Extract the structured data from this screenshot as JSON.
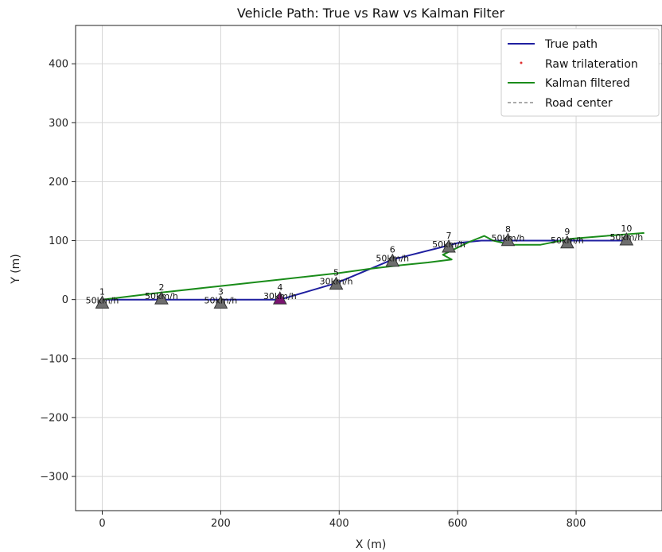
{
  "chart_data": {
    "type": "line",
    "title": "Vehicle Path: True vs Raw vs Kalman Filter",
    "xlabel": "X (m)",
    "ylabel": "Y (m)",
    "xlim": [
      -45,
      945
    ],
    "ylim": [
      -358,
      465
    ],
    "xticks": [
      0,
      200,
      400,
      600,
      800
    ],
    "yticks": [
      -300,
      -200,
      -100,
      0,
      100,
      200,
      300,
      400
    ],
    "xtick_labels": [
      "0",
      "200",
      "400",
      "600",
      "800"
    ],
    "ytick_labels": [
      "−300",
      "−200",
      "−100",
      "0",
      "100",
      "200",
      "300",
      "400"
    ],
    "grid": true,
    "legend_position": "top-right",
    "legend": [
      {
        "label": "True path",
        "style": "line",
        "color": "#1f1fa0"
      },
      {
        "label": "Raw trilateration",
        "style": "point",
        "color": "#e03030"
      },
      {
        "label": "Kalman filtered",
        "style": "line",
        "color": "#1a8c1a"
      },
      {
        "label": "Road center",
        "style": "dashed",
        "color": "#777777"
      }
    ],
    "series": [
      {
        "name": "True path",
        "color": "#1f1fa0",
        "x": [
          0,
          100,
          200,
          300,
          395,
          490,
          585,
          600,
          640,
          685,
          785,
          885
        ],
        "y": [
          0,
          0,
          0,
          0,
          28,
          68,
          92,
          96,
          100,
          100,
          100,
          100
        ]
      },
      {
        "name": "Kalman filtered",
        "color": "#1a8c1a",
        "x": [
          0,
          100,
          200,
          300,
          400,
          450,
          500,
          550,
          590,
          575,
          620,
          645,
          660,
          690,
          740,
          790,
          850,
          915
        ],
        "y": [
          0,
          12,
          23,
          34,
          45,
          52,
          58,
          63,
          68,
          76,
          98,
          108,
          100,
          93,
          93,
          103,
          108,
          113
        ]
      }
    ],
    "towers": [
      {
        "id": "1",
        "x": 0,
        "y": -5,
        "speed": "50km/h",
        "color": "#6e6e6e"
      },
      {
        "id": "2",
        "x": 100,
        "y": 2,
        "speed": "50km/h",
        "color": "#6e6e6e"
      },
      {
        "id": "3",
        "x": 200,
        "y": -5,
        "speed": "50km/h",
        "color": "#6e6e6e"
      },
      {
        "id": "4",
        "x": 300,
        "y": 2,
        "speed": "30km/h",
        "color": "#7a1470"
      },
      {
        "id": "5",
        "x": 395,
        "y": 27,
        "speed": "30km/h",
        "color": "#6e6e6e"
      },
      {
        "id": "6",
        "x": 490,
        "y": 66,
        "speed": "50km/h",
        "color": "#6e6e6e"
      },
      {
        "id": "7",
        "x": 585,
        "y": 90,
        "speed": "50km/h",
        "color": "#6e6e6e"
      },
      {
        "id": "8",
        "x": 685,
        "y": 101,
        "speed": "50km/h",
        "color": "#6e6e6e"
      },
      {
        "id": "9",
        "x": 785,
        "y": 97,
        "speed": "50km/h",
        "color": "#6e6e6e"
      },
      {
        "id": "10",
        "x": 885,
        "y": 102,
        "speed": "50km/h",
        "color": "#6e6e6e"
      }
    ]
  }
}
